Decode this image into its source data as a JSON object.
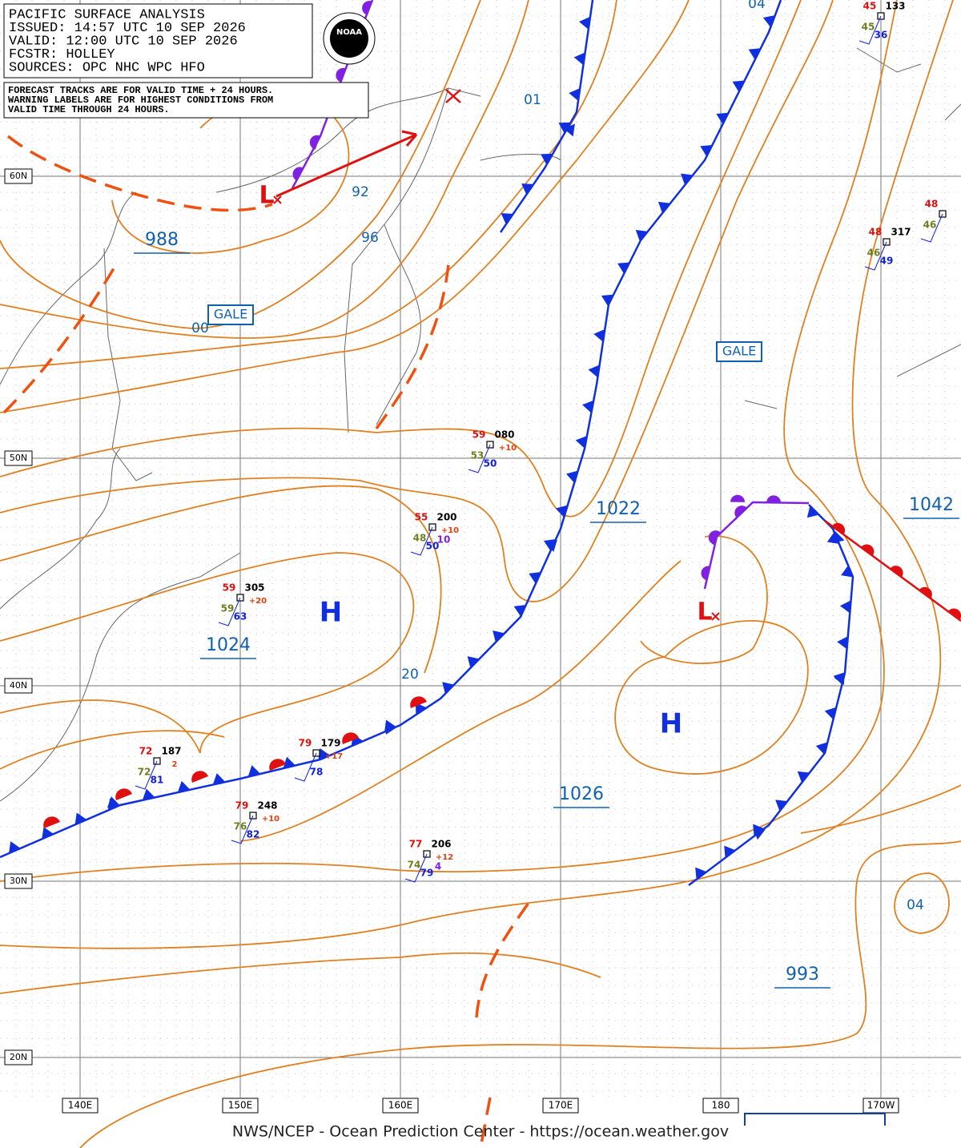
{
  "header": {
    "lines": [
      "PACIFIC SURFACE ANALYSIS",
      "ISSUED:  14:57 UTC 10 SEP 2026",
      "VALID:  12:00 UTC 10 SEP 2026",
      "FCSTR:  HOLLEY",
      "SOURCES:  OPC NHC WPC HFO"
    ]
  },
  "note": {
    "lines": [
      "FORECAST TRACKS ARE FOR VALID TIME + 24 HOURS.",
      "WARNING LABELS ARE FOR HIGHEST CONDITIONS FROM",
      "VALID TIME THROUGH 24 HOURS."
    ]
  },
  "logo": "NOAA",
  "lat_labels": [
    "60N",
    "50N",
    "40N",
    "30N",
    "20N"
  ],
  "lon_labels": [
    "140E",
    "150E",
    "160E",
    "170E",
    "180",
    "170W"
  ],
  "isobar_labels": [
    "01",
    "92",
    "96",
    "00",
    "20",
    "04",
    "04"
  ],
  "centers": [
    "988",
    "1024",
    "1022",
    "1026",
    "993",
    "1042"
  ],
  "highs": [
    "H",
    "H"
  ],
  "lows": [
    "L",
    "L"
  ],
  "warnings": [
    "GALE",
    "GALE"
  ],
  "stations": [
    {
      "temp": "45",
      "pressure": "133",
      "dew": "45",
      "sst": "36"
    },
    {
      "temp": "48",
      "pressure": "317",
      "dew": "46",
      "sst": "49"
    },
    {
      "temp": "48",
      "dew": "46"
    },
    {
      "temp": "59",
      "pressure": "080",
      "tendency": "+10",
      "dew": "53",
      "sst": "50"
    },
    {
      "temp": "55",
      "pressure": "200",
      "tendency": "+10",
      "dew": "48",
      "sst": "50",
      "extra": "10"
    },
    {
      "temp": "59",
      "pressure": "305",
      "tendency": "+20",
      "dew": "59",
      "sst": "63"
    },
    {
      "temp": "72",
      "pressure": "187",
      "tendency": "2",
      "dew": "72",
      "sst": "81"
    },
    {
      "temp": "79",
      "pressure": "179",
      "tendency": "+17",
      "sst": "78"
    },
    {
      "temp": "79",
      "pressure": "248",
      "tendency": "+10",
      "dew": "76",
      "sst": "82"
    },
    {
      "temp": "77",
      "pressure": "206",
      "tendency": "+12",
      "dew": "74",
      "sst": "79",
      "extra": "4"
    }
  ],
  "footer": "NWS/NCEP - Ocean Prediction Center - https://ocean.weather.gov"
}
